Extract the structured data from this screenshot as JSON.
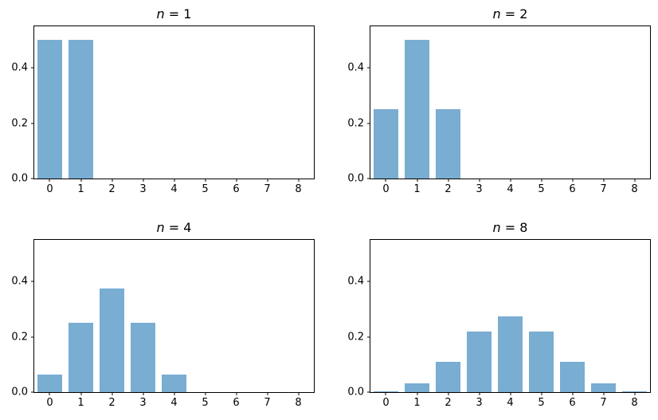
{
  "figure": {
    "background": "#ffffff",
    "bar_color": "#79add2",
    "spine_color": "#000000",
    "text_color": "#000000"
  },
  "chart_data": [
    {
      "type": "bar",
      "title": "n = 1",
      "x": [
        0,
        1
      ],
      "values": [
        0.5,
        0.5
      ],
      "bar_width": 0.8,
      "xlim": [
        -0.5,
        8.5
      ],
      "ylim": [
        0,
        0.55
      ],
      "xticks": [
        0,
        1,
        2,
        3,
        4,
        5,
        6,
        7,
        8
      ],
      "xtick_labels": [
        "0",
        "1",
        "2",
        "3",
        "4",
        "5",
        "6",
        "7",
        "8"
      ],
      "yticks": [
        0.0,
        0.2,
        0.4
      ],
      "ytick_labels": [
        "0.0",
        "0.2",
        "0.4"
      ],
      "grid": false,
      "legend": null
    },
    {
      "type": "bar",
      "title": "n = 2",
      "x": [
        0,
        1,
        2
      ],
      "values": [
        0.25,
        0.5,
        0.25
      ],
      "bar_width": 0.8,
      "xlim": [
        -0.5,
        8.5
      ],
      "ylim": [
        0,
        0.55
      ],
      "xticks": [
        0,
        1,
        2,
        3,
        4,
        5,
        6,
        7,
        8
      ],
      "xtick_labels": [
        "0",
        "1",
        "2",
        "3",
        "4",
        "5",
        "6",
        "7",
        "8"
      ],
      "yticks": [
        0.0,
        0.2,
        0.4
      ],
      "ytick_labels": [
        "0.0",
        "0.2",
        "0.4"
      ],
      "grid": false,
      "legend": null
    },
    {
      "type": "bar",
      "title": "n = 4",
      "x": [
        0,
        1,
        2,
        3,
        4
      ],
      "values": [
        0.0625,
        0.25,
        0.375,
        0.25,
        0.0625
      ],
      "bar_width": 0.8,
      "xlim": [
        -0.5,
        8.5
      ],
      "ylim": [
        0,
        0.55
      ],
      "xticks": [
        0,
        1,
        2,
        3,
        4,
        5,
        6,
        7,
        8
      ],
      "xtick_labels": [
        "0",
        "1",
        "2",
        "3",
        "4",
        "5",
        "6",
        "7",
        "8"
      ],
      "yticks": [
        0.0,
        0.2,
        0.4
      ],
      "ytick_labels": [
        "0.0",
        "0.2",
        "0.4"
      ],
      "grid": false,
      "legend": null
    },
    {
      "type": "bar",
      "title": "n = 8",
      "x": [
        0,
        1,
        2,
        3,
        4,
        5,
        6,
        7,
        8
      ],
      "values": [
        0.003906,
        0.03125,
        0.109375,
        0.21875,
        0.273438,
        0.21875,
        0.109375,
        0.03125,
        0.003906
      ],
      "bar_width": 0.8,
      "xlim": [
        -0.5,
        8.5
      ],
      "ylim": [
        0,
        0.55
      ],
      "xticks": [
        0,
        1,
        2,
        3,
        4,
        5,
        6,
        7,
        8
      ],
      "xtick_labels": [
        "0",
        "1",
        "2",
        "3",
        "4",
        "5",
        "6",
        "7",
        "8"
      ],
      "yticks": [
        0.0,
        0.2,
        0.4
      ],
      "ytick_labels": [
        "0.0",
        "0.2",
        "0.4"
      ],
      "grid": false,
      "legend": null
    }
  ]
}
